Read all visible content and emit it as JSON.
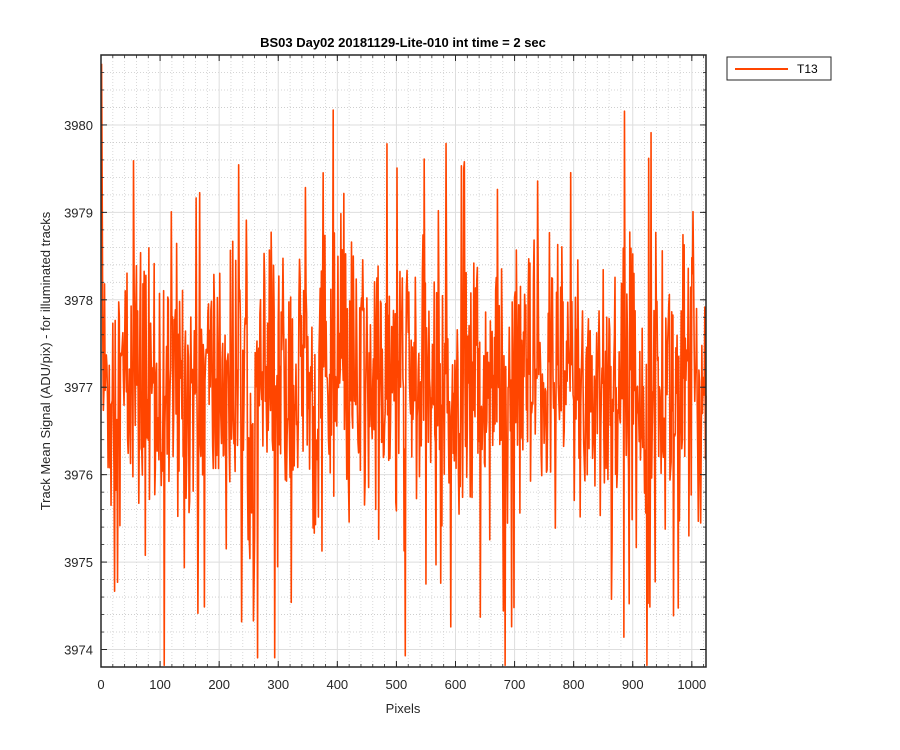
{
  "chart_data": {
    "type": "line",
    "title": "BS03 Day02 20181129-Lite-010 int time = 2 sec",
    "xlabel": "Pixels",
    "ylabel": "Track Mean Signal (ADU/pix) - for illuminated tracks",
    "xlim": [
      0,
      1024
    ],
    "ylim": [
      3973.8,
      3980.8
    ],
    "xticks": [
      0,
      100,
      200,
      300,
      400,
      500,
      600,
      700,
      800,
      900,
      1000
    ],
    "yticks": [
      3974,
      3975,
      3976,
      3977,
      3978,
      3979,
      3980
    ],
    "grid": "on (major and minor, dotted)",
    "legend_position": "outside top-right",
    "series": [
      {
        "name": "T13",
        "color": "#ff4500",
        "x_start": 1,
        "x_step": 1,
        "n_points": 1024,
        "mean": 3977.0,
        "description_values_sampled": [
          3980.7,
          3979.3,
          3977.6,
          3978.9,
          3977.2,
          3979.7,
          3976.8,
          3978.3,
          3976.1,
          3977.9,
          3974.3,
          3979.8,
          3976.5,
          3978.1,
          3975.3,
          3977.7,
          3974.5,
          3979.1,
          3976.2,
          3977.5,
          3975.9,
          3980.0,
          3974.7,
          3978.4,
          3976.0,
          3977.3,
          3975.2,
          3978.8,
          3976.4,
          3977.0
        ]
      }
    ]
  }
}
